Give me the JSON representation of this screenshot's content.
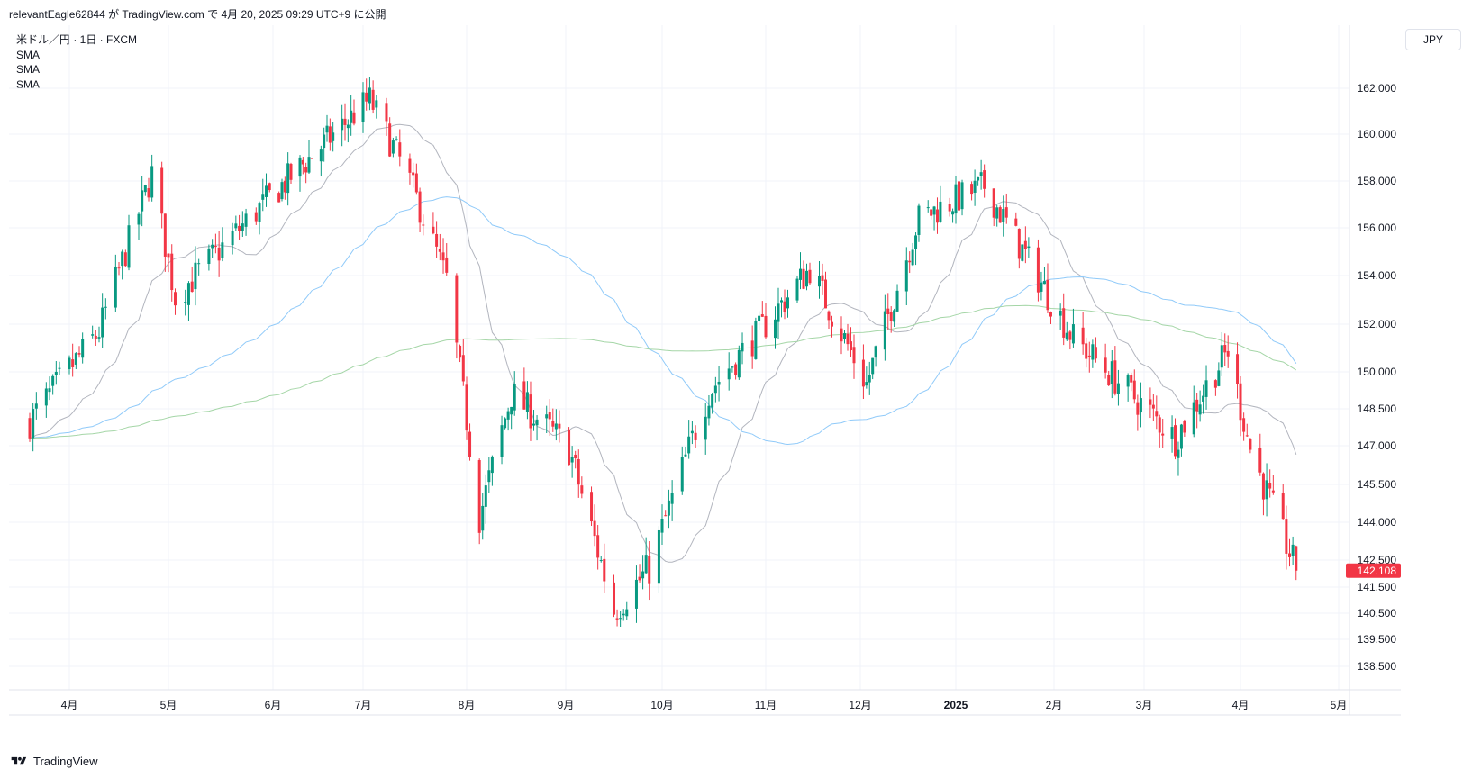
{
  "header": {
    "publish_line": "relevantEagle62844 が TradingView.com で 4月 20, 2025 09:29 UTC+9 に公開"
  },
  "legend": {
    "symbol": "米ドル／円 · 1日 · FXCM",
    "indicators": [
      "SMA",
      "SMA",
      "SMA"
    ]
  },
  "currency": "JPY",
  "brand": {
    "name": "TradingView"
  },
  "colors": {
    "up": "#089981",
    "down": "#f23645",
    "sma_short": "#b2b5be",
    "sma_mid": "#90caf9",
    "sma_long": "#a5d6a7",
    "grid": "#f0f3fa",
    "last_price_bg": "#f23645"
  },
  "chart_data": {
    "type": "candlestick",
    "symbol": "米ドル／円",
    "interval": "1日",
    "source": "FXCM",
    "last_price": "142.108",
    "y_ticks": [
      "162.000",
      "160.000",
      "158.000",
      "156.000",
      "154.000",
      "152.000",
      "150.000",
      "148.500",
      "147.000",
      "145.500",
      "144.000",
      "142.500",
      "141.500",
      "140.500",
      "139.500",
      "138.500"
    ],
    "x_ticks": [
      {
        "label": "4月",
        "date": "2024-04-01"
      },
      {
        "label": "5月",
        "date": "2024-05-01"
      },
      {
        "label": "6月",
        "date": "2024-06-01"
      },
      {
        "label": "7月",
        "date": "2024-07-01"
      },
      {
        "label": "8月",
        "date": "2024-08-01"
      },
      {
        "label": "9月",
        "date": "2024-09-01"
      },
      {
        "label": "10月",
        "date": "2024-10-01"
      },
      {
        "label": "11月",
        "date": "2024-11-01"
      },
      {
        "label": "12月",
        "date": "2024-12-01"
      },
      {
        "label": "2025",
        "date": "2025-01-01",
        "bold": true
      },
      {
        "label": "2月",
        "date": "2025-02-01"
      },
      {
        "label": "3月",
        "date": "2025-03-01"
      },
      {
        "label": "4月",
        "date": "2025-04-01"
      },
      {
        "label": "5月",
        "date": "2025-05-01"
      }
    ],
    "key_closes": [
      {
        "date": "2024-03-20",
        "close": 148.0
      },
      {
        "date": "2024-04-10",
        "close": 151.7
      },
      {
        "date": "2024-04-26",
        "close": 158.3
      },
      {
        "date": "2024-05-03",
        "close": 153.1
      },
      {
        "date": "2024-05-31",
        "close": 157.3
      },
      {
        "date": "2024-07-03",
        "close": 161.5
      },
      {
        "date": "2024-07-15",
        "close": 158.0
      },
      {
        "date": "2024-07-26",
        "close": 153.8
      },
      {
        "date": "2024-08-05",
        "close": 144.2
      },
      {
        "date": "2024-08-15",
        "close": 149.1
      },
      {
        "date": "2024-09-02",
        "close": 146.9
      },
      {
        "date": "2024-09-16",
        "close": 140.6
      },
      {
        "date": "2024-09-27",
        "close": 142.2
      },
      {
        "date": "2024-10-15",
        "close": 149.2
      },
      {
        "date": "2024-11-15",
        "close": 154.3
      },
      {
        "date": "2024-12-03",
        "close": 149.5
      },
      {
        "date": "2024-12-20",
        "close": 156.4
      },
      {
        "date": "2025-01-10",
        "close": 157.8
      },
      {
        "date": "2025-02-07",
        "close": 151.4
      },
      {
        "date": "2025-03-11",
        "close": 147.3
      },
      {
        "date": "2025-03-28",
        "close": 150.9
      },
      {
        "date": "2025-04-04",
        "close": 146.9
      },
      {
        "date": "2025-04-18",
        "close": 142.1
      }
    ],
    "series": [
      {
        "type": "sma",
        "color": "#b2b5be"
      },
      {
        "type": "sma",
        "color": "#90caf9"
      },
      {
        "type": "sma",
        "color": "#a5d6a7"
      }
    ],
    "grid": true,
    "price_axis": "right"
  }
}
